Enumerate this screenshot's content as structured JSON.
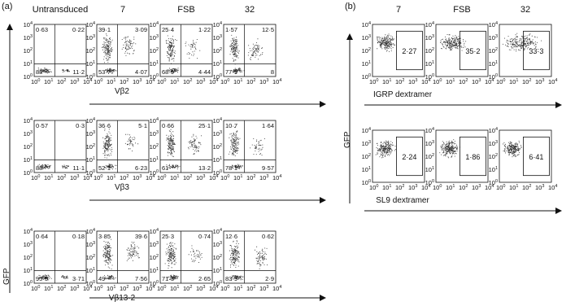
{
  "panel_a": {
    "label": "(a)",
    "y_axis": "GFP",
    "columns": [
      "Untransduced",
      "7",
      "FSB",
      "32"
    ],
    "rows": [
      {
        "x_axis": "Vβ2",
        "plots": [
          [
            "0·63",
            "0·22",
            "88",
            "11·2"
          ],
          [
            "39·1",
            "3·09",
            "53·7",
            "4·07"
          ],
          [
            "25·4",
            "1·22",
            "68·9",
            "4·44"
          ],
          [
            "1·57",
            "12·5",
            "77·9",
            "8"
          ]
        ]
      },
      {
        "x_axis": "Vβ3",
        "plots": [
          [
            "0·57",
            "0·3",
            "88",
            "11·1"
          ],
          [
            "36·6",
            "5·1",
            "52·1",
            "6·23"
          ],
          [
            "0·66",
            "25·1",
            "61",
            "13·2"
          ],
          [
            "10·7",
            "1·64",
            "78·1",
            "9·57"
          ]
        ]
      },
      {
        "x_axis": "Vβ13·2",
        "plots": [
          [
            "0·64",
            "0·18",
            "95·5",
            "3·71"
          ],
          [
            "3·85",
            "39·6",
            "49",
            "7·56"
          ],
          [
            "25·3",
            "0·74",
            "71·3",
            "2·65"
          ],
          [
            "12·6",
            "0·62",
            "83·9",
            "2·9"
          ]
        ]
      }
    ]
  },
  "panel_b": {
    "label": "(b)",
    "y_axis": "GFP",
    "columns": [
      "7",
      "FSB",
      "32"
    ],
    "rows": [
      {
        "x_axis": "IGRP dextramer",
        "gates": [
          "2·27",
          "35·2",
          "33·3"
        ]
      },
      {
        "x_axis": "SL9 dextramer",
        "gates": [
          "2·24",
          "1·86",
          "6·41"
        ]
      }
    ]
  },
  "axis_ticks": {
    "base": "10",
    "exponents": [
      0,
      1,
      2,
      3,
      4
    ]
  }
}
